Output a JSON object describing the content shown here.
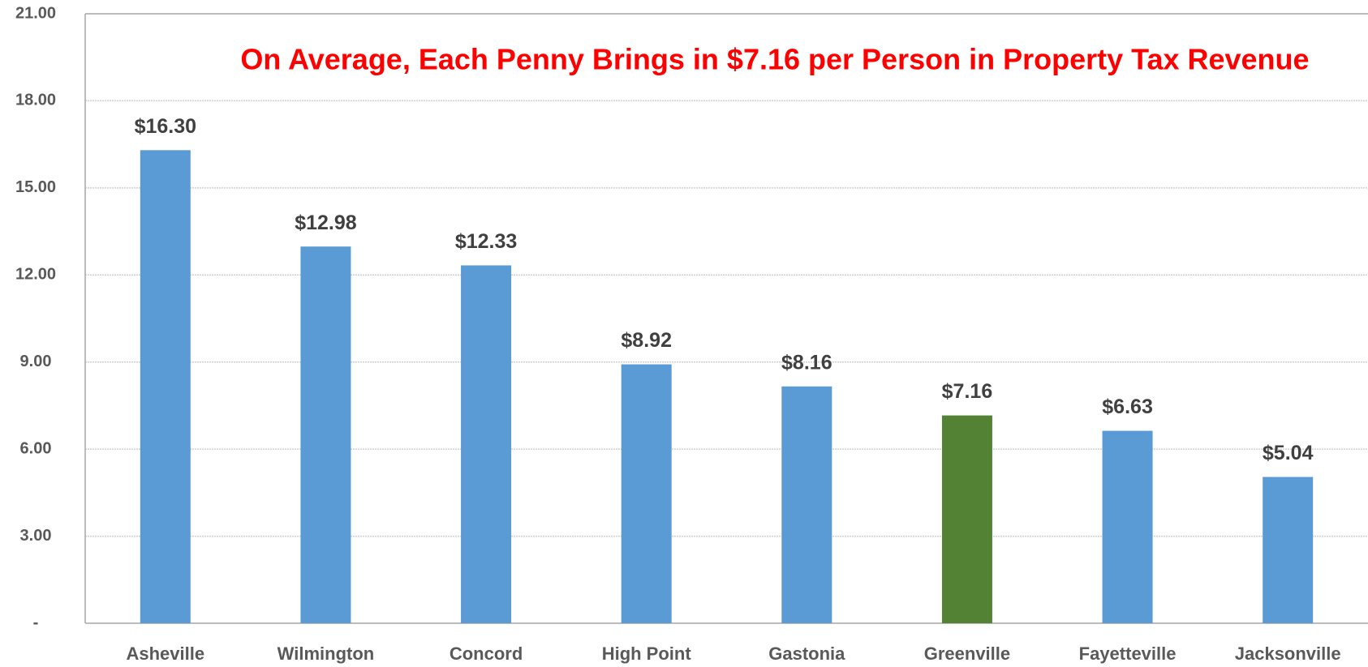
{
  "chart_data": {
    "type": "bar",
    "annotation": "On Average, Each Penny Brings in $7.16 per Person in Property Tax Revenue",
    "categories": [
      "Asheville",
      "Wilmington",
      "Concord",
      "High Point",
      "Gastonia",
      "Greenville",
      "Fayetteville",
      "Jacksonville"
    ],
    "values": [
      16.3,
      12.98,
      12.33,
      8.92,
      8.16,
      7.16,
      6.63,
      5.04
    ],
    "value_labels": [
      "$16.30",
      "$12.98",
      "$12.33",
      "$8.92",
      "$8.16",
      "$7.16",
      "$6.63",
      "$5.04"
    ],
    "colors": [
      "#5b9bd5",
      "#5b9bd5",
      "#5b9bd5",
      "#5b9bd5",
      "#5b9bd5",
      "#548235",
      "#5b9bd5",
      "#5b9bd5"
    ],
    "ylim": [
      0,
      21
    ],
    "yticks": [
      {
        "value": 0,
        "label": "-"
      },
      {
        "value": 3,
        "label": "3.00"
      },
      {
        "value": 6,
        "label": "6.00"
      },
      {
        "value": 9,
        "label": "9.00"
      },
      {
        "value": 12,
        "label": "12.00"
      },
      {
        "value": 15,
        "label": "15.00"
      },
      {
        "value": 18,
        "label": "18.00"
      },
      {
        "value": 21,
        "label": "21.00"
      }
    ],
    "grid": true
  }
}
